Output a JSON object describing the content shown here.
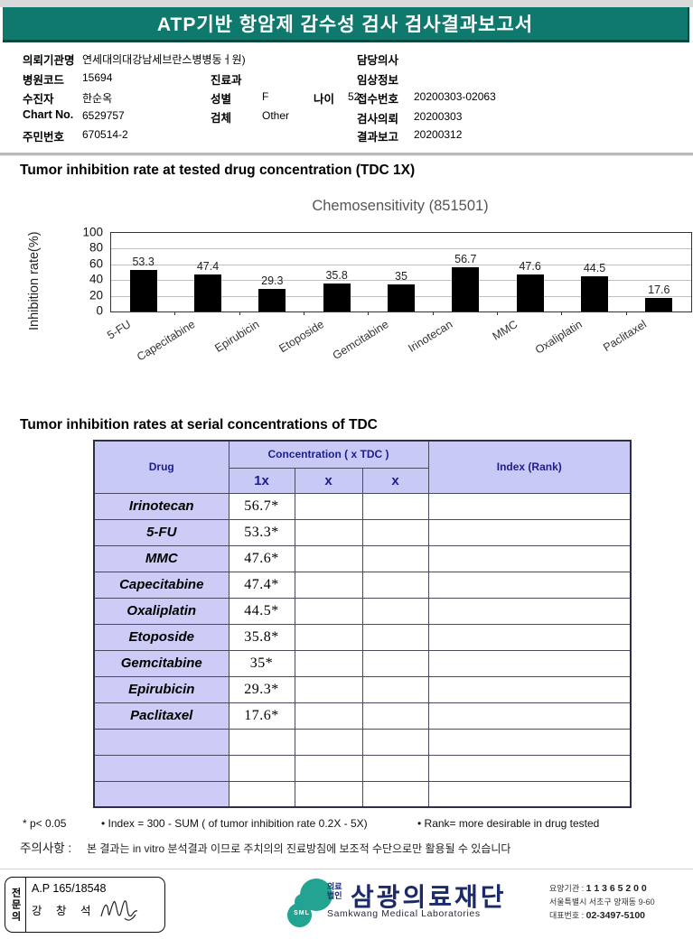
{
  "header": {
    "title": "ATP기반 항암제 감수성 검사 검사결과보고서"
  },
  "info": {
    "agency_label": "의뢰기관명",
    "agency": "연세대의대강남세브란스병병동ㅓ원)",
    "hospital_code_label": "병원코드",
    "hospital_code": "15694",
    "patient_label": "수진자",
    "patient": "한순옥",
    "chart_no_label": "Chart No.",
    "chart_no": "6529757",
    "resident_id_label": "주민번호",
    "resident_id": "670514-2",
    "department_label": "진료과",
    "department": "",
    "sex_label": "성별",
    "sex": "F",
    "age_label": "나이",
    "age": "52",
    "specimen_label": "검체",
    "specimen": "Other",
    "doctor_label": "담당의사",
    "doctor": "",
    "clinical_label": "임상정보",
    "clinical": "",
    "receipt_label": "접수번호",
    "receipt": "20200303-02063",
    "request_label": "검사의뢰",
    "request": "20200303",
    "report_label": "결과보고",
    "report": "20200312"
  },
  "section1_title": "Tumor inhibition rate at tested drug concentration (TDC 1X)",
  "chart_data": {
    "type": "bar",
    "title": "Chemosensitivity (851501)",
    "ylabel": "Inhibition rate(%)",
    "xlabel": "",
    "categories": [
      "5-FU",
      "Capecitabine",
      "Epirubicin",
      "Etoposide",
      "Gemcitabine",
      "Irinotecan",
      "MMC",
      "Oxaliplatin",
      "Paclitaxel"
    ],
    "values": [
      53.3,
      47.4,
      29.3,
      35.8,
      35,
      56.7,
      47.6,
      44.5,
      17.6
    ],
    "value_labels": [
      "53.3",
      "47.4",
      "29.3",
      "35.8",
      "35",
      "56.7",
      "47.6",
      "44.5",
      "17.6"
    ],
    "ylim": [
      0,
      100
    ],
    "yticks": [
      0,
      20,
      40,
      60,
      80,
      100
    ],
    "bar_color": "#000000",
    "grid": true,
    "legend": "none"
  },
  "section2_title": "Tumor inhibition rates at serial concentrations of TDC",
  "table": {
    "col_drug": "Drug",
    "col_concentration": "Concentration ( x TDC )",
    "col_sub": [
      "1x",
      "x",
      "x"
    ],
    "col_index": "Index (Rank)",
    "rows": [
      {
        "drug": "Irinotecan",
        "v1": "56.7*",
        "v2": "",
        "v3": "",
        "index": ""
      },
      {
        "drug": "5-FU",
        "v1": "53.3*",
        "v2": "",
        "v3": "",
        "index": ""
      },
      {
        "drug": "MMC",
        "v1": "47.6*",
        "v2": "",
        "v3": "",
        "index": ""
      },
      {
        "drug": "Capecitabine",
        "v1": "47.4*",
        "v2": "",
        "v3": "",
        "index": ""
      },
      {
        "drug": "Oxaliplatin",
        "v1": "44.5*",
        "v2": "",
        "v3": "",
        "index": ""
      },
      {
        "drug": "Etoposide",
        "v1": "35.8*",
        "v2": "",
        "v3": "",
        "index": ""
      },
      {
        "drug": "Gemcitabine",
        "v1": "35*",
        "v2": "",
        "v3": "",
        "index": ""
      },
      {
        "drug": "Epirubicin",
        "v1": "29.3*",
        "v2": "",
        "v3": "",
        "index": ""
      },
      {
        "drug": "Paclitaxel",
        "v1": "17.6*",
        "v2": "",
        "v3": "",
        "index": ""
      },
      {
        "drug": "",
        "v1": "",
        "v2": "",
        "v3": "",
        "index": ""
      },
      {
        "drug": "",
        "v1": "",
        "v2": "",
        "v3": "",
        "index": ""
      },
      {
        "drug": "",
        "v1": "",
        "v2": "",
        "v3": "",
        "index": ""
      }
    ]
  },
  "footnotes": {
    "p_note": "* p< 0.05",
    "index_note": "• Index = 300 - SUM ( of tumor inhibition rate 0.2X  -  5X)",
    "rank_note": "• Rank= more desirable in drug tested",
    "caution_label": "주의사항 :",
    "caution": "본 결과는 in vitro 분석결과 이므로 주치의의 진료방침에 보조적 수단으로만 활용될 수 있습니다"
  },
  "footer": {
    "stamp_side": "전문의",
    "stamp_no": "A.P 165/18548",
    "stamp_name": "강 창 석",
    "logo_sml": "SML",
    "logo_small_1": "의료",
    "logo_small_2": "법인",
    "logo_main": "삼광의료재단",
    "logo_sub": "Samkwang Medical Laboratories",
    "license_label": "요양기관 : ",
    "license_no": "1 1 3 6 5 2 0 0",
    "address": "서울특별시 서초구 양재동 9-60",
    "phone_label": "대표번호 : ",
    "phone": "02-3497-5100"
  },
  "colors": {
    "header_teal": "#0e796c",
    "table_lavender": "#c9c9f5",
    "table_text_navy": "#1d1d8f",
    "logo_teal": "#23a391",
    "logo_navy": "#1b2a6b",
    "bar_black": "#000000"
  }
}
